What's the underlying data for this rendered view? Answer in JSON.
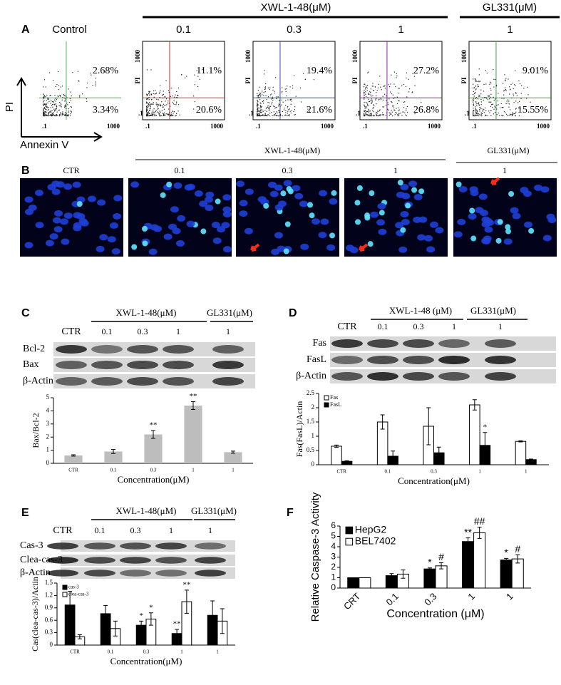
{
  "figure": {
    "header": {
      "drug1": "XWL-1-48(μM)",
      "drug2": "GL331(μM)"
    },
    "panel_a": {
      "label": "A",
      "y_label": "PI",
      "x_label": "Annexin V",
      "tick_low": ".1",
      "tick_high": "1000",
      "plots": [
        {
          "header": "Control",
          "upper": "2.68%",
          "lower": "3.34%",
          "line_color": "#4caf50"
        },
        {
          "header": "0.1",
          "upper": "11.1%",
          "lower": "20.6%",
          "line_color": "#d32f2f"
        },
        {
          "header": "0.3",
          "upper": "19.4%",
          "lower": "21.6%",
          "line_color": "#3949ab"
        },
        {
          "header": "1",
          "upper": "27.2%",
          "lower": "26.8%",
          "line_color": "#8e24aa"
        },
        {
          "header": "1",
          "upper": "9.01%",
          "lower": "15.55%",
          "line_color": "#43a047"
        }
      ]
    },
    "panel_b": {
      "label": "B",
      "drug1": "XWL-1-48(μM)",
      "drug2": "GL331(μM)",
      "columns": [
        "CTR",
        "0.1",
        "0.3",
        "1",
        "1"
      ]
    },
    "panel_c": {
      "label": "C",
      "drug1": "XWL-1-48(μM)",
      "drug2": "GL331(μM)",
      "columns": [
        "CTR",
        "0.1",
        "0.3",
        "1",
        "1"
      ],
      "rows": [
        "Bcl-2",
        "Bax",
        "β-Actin"
      ]
    },
    "panel_d": {
      "label": "D",
      "drug1": "XWL-1-48 (μM)",
      "drug2": "GL331(μM)",
      "columns": [
        "CTR",
        "0.1",
        "0.3",
        "1",
        "1"
      ],
      "rows": [
        "Fas",
        "FasL",
        "β-Actin"
      ]
    },
    "panel_e": {
      "label": "E",
      "drug1": "XWL-1-48(μM)",
      "drug2": "GL331(μM)",
      "columns": [
        "CTR",
        "0.1",
        "0.3",
        "1",
        "1"
      ],
      "rows": [
        "Cas-3",
        "Clea-cas-3",
        "β-Actin"
      ]
    },
    "panel_f": {
      "label": "F"
    }
  },
  "chart_data": [
    {
      "type": "bar",
      "y_label": "Bax/Bcl-2",
      "x_label": "Concentration(μM)",
      "categories": [
        "CTR",
        "0.1",
        "0.3",
        "1",
        "1"
      ],
      "ylim": [
        0,
        5
      ],
      "yticks": [
        0,
        1,
        2,
        3,
        4,
        5
      ],
      "series": [
        {
          "color": "#bdbdbd",
          "values": [
            0.6,
            0.9,
            2.2,
            4.4,
            0.85
          ],
          "errors": [
            0.05,
            0.15,
            0.3,
            0.3,
            0.08
          ],
          "marks": [
            null,
            null,
            "**",
            "**",
            null
          ]
        }
      ]
    },
    {
      "type": "bar",
      "y_label": "Fas(FasL)/Actin",
      "x_label": "Concentration(μM)",
      "legend": "upper left",
      "categories": [
        "CTR",
        "0.1",
        "0.3",
        "1",
        "1"
      ],
      "ylim": [
        0,
        2.5
      ],
      "yticks": [
        0,
        0.5,
        1,
        1.5,
        2,
        2.5
      ],
      "series": [
        {
          "name": "Fas",
          "color": "#ffffff",
          "values": [
            0.65,
            1.5,
            1.35,
            2.1,
            0.82
          ],
          "errors": [
            0.04,
            0.25,
            0.65,
            0.18,
            0.02
          ],
          "marks": [
            null,
            null,
            null,
            null,
            null
          ]
        },
        {
          "name": "FasL",
          "color": "#000000",
          "values": [
            0.12,
            0.3,
            0.42,
            0.68,
            0.18
          ],
          "errors": [
            0.02,
            0.18,
            0.2,
            0.45,
            0.02
          ],
          "marks": [
            null,
            null,
            null,
            "*",
            null
          ]
        }
      ]
    },
    {
      "type": "bar",
      "y_label": "Cas(clea-cas-3)/Actin",
      "x_label": "Concentration(μM)",
      "legend": "upper left",
      "categories": [
        "CTR",
        "0.1",
        "0.3",
        "1",
        "1"
      ],
      "ylim": [
        0,
        1.5
      ],
      "yticks": [
        0,
        0.3,
        0.6,
        0.9,
        1.2,
        1.5
      ],
      "series": [
        {
          "name": "cas-3",
          "color": "#000000",
          "values": [
            0.97,
            0.76,
            0.48,
            0.28,
            0.72
          ],
          "errors": [
            0.33,
            0.2,
            0.1,
            0.1,
            0.35
          ],
          "marks": [
            null,
            null,
            "*",
            "**",
            null
          ]
        },
        {
          "name": "clea-cas-3",
          "color": "#ffffff",
          "values": [
            0.2,
            0.4,
            0.63,
            1.05,
            0.58
          ],
          "errors": [
            0.05,
            0.18,
            0.15,
            0.28,
            0.3
          ],
          "marks": [
            null,
            null,
            "*",
            "**",
            null
          ]
        }
      ]
    },
    {
      "type": "bar",
      "y_label": "Relative Caspase-3 Activity",
      "x_label": "Concentration (μM)",
      "legend": "upper left",
      "categories": [
        "CRT",
        "0.1",
        "0.3",
        "1",
        "1"
      ],
      "ylim": [
        0,
        6
      ],
      "yticks": [
        0,
        1,
        2,
        3,
        4,
        5,
        6
      ],
      "series": [
        {
          "name": "HepG2",
          "color": "#000000",
          "values": [
            1,
            1.2,
            1.85,
            4.5,
            2.72
          ],
          "errors": [
            0,
            0.2,
            0.1,
            0.35,
            0.15
          ],
          "marks": [
            null,
            null,
            "*",
            "**",
            "*"
          ]
        },
        {
          "name": "BEL7402",
          "color": "#ffffff",
          "values": [
            1,
            1.35,
            2.15,
            5.35,
            2.82
          ],
          "errors": [
            0,
            0.4,
            0.3,
            0.55,
            0.4
          ],
          "marks": [
            null,
            null,
            "#",
            "##",
            "#"
          ]
        }
      ]
    }
  ]
}
